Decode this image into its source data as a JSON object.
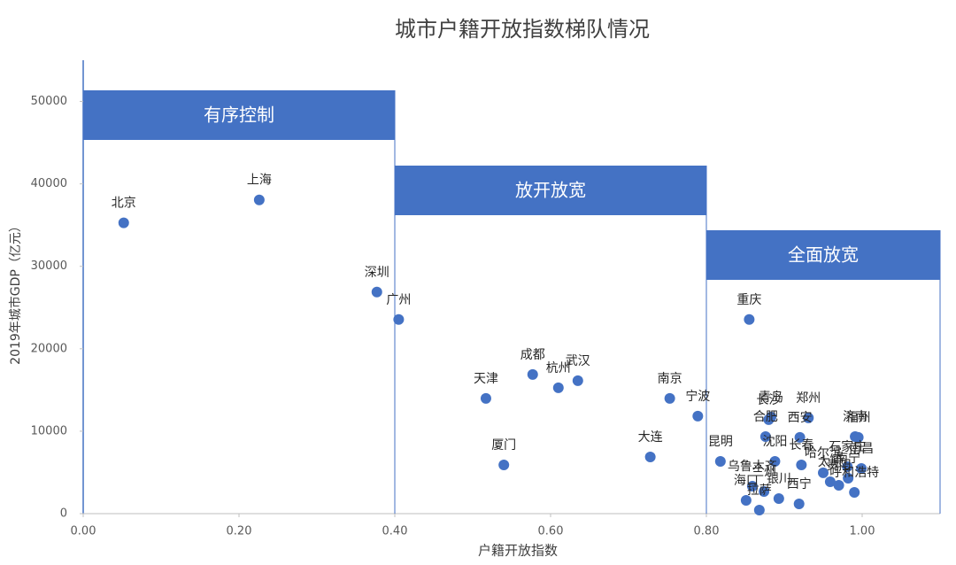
{
  "chart_data": {
    "type": "scatter",
    "title": "城市户籍开放指数梯队情况",
    "x_label": "户籍开放指数",
    "y_label": "2019年城市GDP（亿元）",
    "color": "#4472c4",
    "labels": [
      "北京",
      "上海",
      "深圳",
      "广州",
      "天津",
      "厦门",
      "成都",
      "杭州",
      "武汉",
      "南京",
      "宁波",
      "大连",
      "重庆",
      "长沙",
      "青岛",
      "郑州",
      "西安",
      "合肥",
      "济南",
      "福州",
      "昆明",
      "沈阳",
      "长春",
      "哈尔滨",
      "石家庄",
      "南昌",
      "乌鲁木齐",
      "兰州",
      "太原",
      "南宁",
      "贵阳",
      "呼和浩特",
      "海口",
      "银川",
      "拉萨",
      "西宁"
    ],
    "x": [
      0.052,
      0.226,
      0.377,
      0.405,
      0.517,
      0.54,
      0.577,
      0.61,
      0.635,
      0.753,
      0.789,
      0.728,
      0.855,
      0.88,
      0.883,
      0.931,
      0.92,
      0.876,
      0.991,
      0.995,
      0.818,
      0.888,
      0.922,
      0.95,
      0.981,
      0.999,
      0.859,
      0.874,
      0.959,
      0.982,
      0.97,
      0.99,
      0.851,
      0.893,
      0.868,
      0.919
    ],
    "values": [
      35270,
      38060,
      26880,
      23550,
      13980,
      5910,
      16880,
      15270,
      16130,
      13980,
      11830,
      6880,
      23550,
      11400,
      11720,
      11610,
      9250,
      9350,
      9350,
      9250,
      6340,
      6340,
      5910,
      4950,
      5700,
      5480,
      3330,
      2690,
      3870,
      4300,
      3440,
      2580,
      1610,
      1830,
      430,
      1180
    ],
    "regions": [
      {
        "label": "有序控制",
        "x": [
          0,
          0.4
        ]
      },
      {
        "label": "放开放宽",
        "x": [
          0.4,
          0.8
        ]
      },
      {
        "label": "全面放宽",
        "x": [
          0.8,
          1.1
        ]
      }
    ],
    "xlim": [
      0,
      1.1
    ],
    "xticks": [
      {
        "value": 0,
        "label": "0.00"
      },
      {
        "value": 0.2,
        "label": "0.20"
      },
      {
        "value": 0.4,
        "label": "0.40"
      },
      {
        "value": 0.6,
        "label": "0.60"
      },
      {
        "value": 0.8,
        "label": "0.80"
      },
      {
        "value": 1,
        "label": "1.00"
      }
    ],
    "ylim": [
      0,
      55000
    ],
    "yticks": [
      0,
      10000,
      20000,
      30000,
      40000,
      50000
    ]
  }
}
